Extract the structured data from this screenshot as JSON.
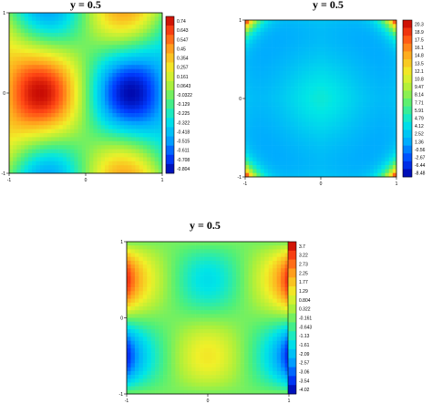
{
  "chart_data": [
    {
      "type": "heatmap",
      "title": "y = 0.5",
      "xlim": [
        -1,
        1
      ],
      "ylim": [
        -1,
        1
      ],
      "x_ticks": [
        "-1",
        "0",
        "1"
      ],
      "y_ticks": [
        "-1",
        "0",
        "1"
      ],
      "colorbar_ticks": [
        "0.74",
        "0.643",
        "0.547",
        "0.45",
        "0.354",
        "0.257",
        "0.161",
        "0.0643",
        "-0.0322",
        "-0.129",
        "-0.225",
        "-0.322",
        "-0.418",
        "-0.515",
        "-0.611",
        "-0.708",
        "-0.804"
      ],
      "range": [
        -0.804,
        0.74
      ],
      "field": "hot at top-left and bottom-left corners, cold top-right/bottom-right corners, warm bump at right-center, cool bump at left-center",
      "pattern": "p1"
    },
    {
      "type": "heatmap",
      "title": "y = 0.5",
      "xlim": [
        -1,
        1
      ],
      "ylim": [
        -1,
        1
      ],
      "x_ticks": [
        "-1",
        "0",
        "1"
      ],
      "y_ticks": [
        "-1",
        "0",
        "1"
      ],
      "colorbar_ticks": [
        "20.3",
        "18.9",
        "17.5",
        "16.1",
        "14.8",
        "13.5",
        "12.1",
        "10.8",
        "9.47",
        "8.14",
        "7.71",
        "5.91",
        "4.79",
        "4.12",
        "2.52",
        "1.36",
        "-0.56",
        "-2.67",
        "-6.44",
        "-8.48"
      ],
      "range": [
        -8.48,
        20.3
      ],
      "field": "hot corners, greenish center, cyan mid-edges",
      "pattern": "p2"
    },
    {
      "type": "heatmap",
      "title": "y = 0.5",
      "xlim": [
        -1,
        1
      ],
      "ylim": [
        -1,
        1
      ],
      "x_ticks": [
        "-1",
        "0",
        "1"
      ],
      "y_ticks": [
        "-1",
        "0",
        "1"
      ],
      "colorbar_ticks": [
        "3.7",
        "3.22",
        "2.73",
        "2.25",
        "1.77",
        "1.29",
        "0.804",
        "0.322",
        "-0.161",
        "-0.643",
        "-1.13",
        "-1.61",
        "-2.09",
        "-2.57",
        "-3.06",
        "-3.54",
        "-4.02"
      ],
      "range": [
        -4.02,
        3.7
      ],
      "field": "hot upper left/right edges, cold lower left/right edges, blue bump top-center, yellow bump bottom-center",
      "pattern": "p3"
    }
  ]
}
